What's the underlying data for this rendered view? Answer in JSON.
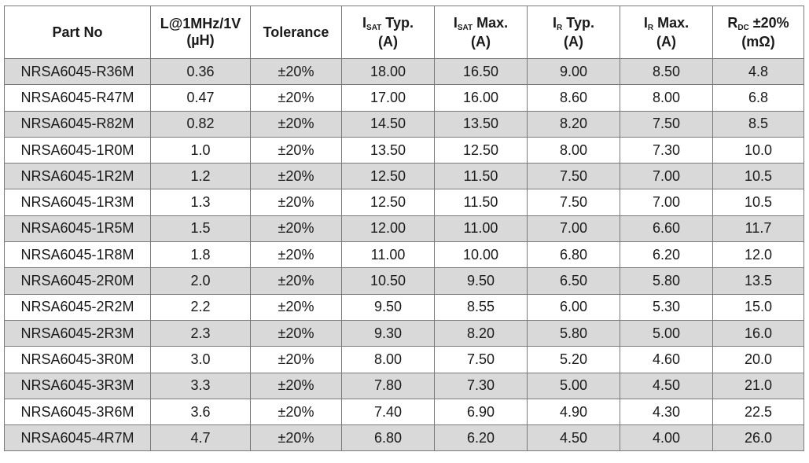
{
  "headers": {
    "part_no": "Part No",
    "inductance_line1": "L@1MHz/1V",
    "inductance_line2": "(µH)",
    "tolerance": "Tolerance",
    "isat_typ_main": "I",
    "isat_typ_sub": "SAT",
    "isat_typ_suffix": " Typ.",
    "isat_typ_unit": "(A)",
    "isat_max_main": "I",
    "isat_max_sub": "SAT",
    "isat_max_suffix": " Max.",
    "isat_max_unit": "(A)",
    "ir_typ_main": "I",
    "ir_typ_sub": "R",
    "ir_typ_suffix": " Typ.",
    "ir_typ_unit": "(A)",
    "ir_max_main": "I",
    "ir_max_sub": "R",
    "ir_max_suffix": " Max.",
    "ir_max_unit": "(A)",
    "rdc_main": "R",
    "rdc_sub": "DC",
    "rdc_suffix": " ±20%",
    "rdc_unit": "(mΩ)"
  },
  "rows": [
    [
      "NRSA6045-R36M",
      "0.36",
      "±20%",
      "18.00",
      "16.50",
      "9.00",
      "8.50",
      "4.8"
    ],
    [
      "NRSA6045-R47M",
      "0.47",
      "±20%",
      "17.00",
      "16.00",
      "8.60",
      "8.00",
      "6.8"
    ],
    [
      "NRSA6045-R82M",
      "0.82",
      "±20%",
      "14.50",
      "13.50",
      "8.20",
      "7.50",
      "8.5"
    ],
    [
      "NRSA6045-1R0M",
      "1.0",
      "±20%",
      "13.50",
      "12.50",
      "8.00",
      "7.30",
      "10.0"
    ],
    [
      "NRSA6045-1R2M",
      "1.2",
      "±20%",
      "12.50",
      "11.50",
      "7.50",
      "7.00",
      "10.5"
    ],
    [
      "NRSA6045-1R3M",
      "1.3",
      "±20%",
      "12.50",
      "11.50",
      "7.50",
      "7.00",
      "10.5"
    ],
    [
      "NRSA6045-1R5M",
      "1.5",
      "±20%",
      "12.00",
      "11.00",
      "7.00",
      "6.60",
      "11.7"
    ],
    [
      "NRSA6045-1R8M",
      "1.8",
      "±20%",
      "11.00",
      "10.00",
      "6.80",
      "6.20",
      "12.0"
    ],
    [
      "NRSA6045-2R0M",
      "2.0",
      "±20%",
      "10.50",
      "9.50",
      "6.50",
      "5.80",
      "13.5"
    ],
    [
      "NRSA6045-2R2M",
      "2.2",
      "±20%",
      "9.50",
      "8.55",
      "6.00",
      "5.30",
      "15.0"
    ],
    [
      "NRSA6045-2R3M",
      "2.3",
      "±20%",
      "9.30",
      "8.20",
      "5.80",
      "5.00",
      "16.0"
    ],
    [
      "NRSA6045-3R0M",
      "3.0",
      "±20%",
      "8.00",
      "7.50",
      "5.20",
      "4.60",
      "20.0"
    ],
    [
      "NRSA6045-3R3M",
      "3.3",
      "±20%",
      "7.80",
      "7.30",
      "5.00",
      "4.50",
      "21.0"
    ],
    [
      "NRSA6045-3R6M",
      "3.6",
      "±20%",
      "7.40",
      "6.90",
      "4.90",
      "4.30",
      "22.5"
    ],
    [
      "NRSA6045-4R7M",
      "4.7",
      "±20%",
      "6.80",
      "6.20",
      "4.50",
      "4.00",
      "26.0"
    ]
  ],
  "colors": {
    "border": "#7a7a7a",
    "shaded_row": "#d9d9d9",
    "plain_row": "#ffffff"
  }
}
